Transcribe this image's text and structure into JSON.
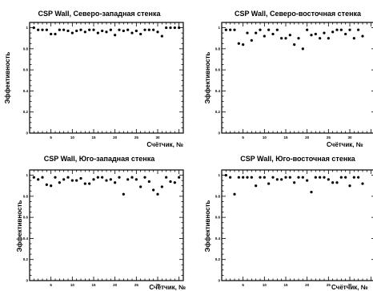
{
  "chart_data": [
    {
      "type": "scatter",
      "title": "CSP Wall, Северо-западная стенка",
      "xlabel": "Счётчик, №",
      "ylabel": "Эффективность",
      "xlim": [
        0,
        36
      ],
      "ylim": [
        0,
        1.05
      ],
      "x_ticks": [
        "5",
        "10",
        "15",
        "20",
        "25",
        "30"
      ],
      "y_ticks": [
        "0",
        "0.2",
        "0.4",
        "0.6",
        "0.8",
        "1"
      ],
      "x": [
        1,
        2,
        3,
        4,
        5,
        6,
        7,
        8,
        9,
        10,
        11,
        12,
        13,
        14,
        15,
        16,
        17,
        18,
        19,
        20,
        21,
        22,
        23,
        24,
        25,
        26,
        27,
        28,
        29,
        30,
        31,
        32,
        33,
        34,
        35
      ],
      "y": [
        1.0,
        0.98,
        0.98,
        0.98,
        0.94,
        0.94,
        0.98,
        0.98,
        0.97,
        0.95,
        0.97,
        0.98,
        0.96,
        0.98,
        0.98,
        0.95,
        0.97,
        0.96,
        0.98,
        0.93,
        0.98,
        0.97,
        0.98,
        0.95,
        0.97,
        0.94,
        0.98,
        0.98,
        0.98,
        0.96,
        0.92,
        1.0,
        1.0,
        1.0,
        1.0
      ]
    },
    {
      "type": "scatter",
      "title": "CSP Wall, Северо-восточная стенка",
      "xlabel": "Счётчик, №",
      "ylabel": "Эффективность",
      "xlim": [
        0,
        36
      ],
      "ylim": [
        0,
        1.05
      ],
      "x_ticks": [
        "5",
        "10",
        "15",
        "20",
        "25",
        "30"
      ],
      "y_ticks": [
        "0",
        "0.2",
        "0.4",
        "0.6",
        "0.8",
        "1"
      ],
      "x": [
        1,
        2,
        3,
        4,
        5,
        6,
        7,
        8,
        9,
        10,
        11,
        12,
        13,
        14,
        15,
        16,
        17,
        18,
        19,
        20,
        21,
        22,
        23,
        24,
        25,
        26,
        27,
        28,
        29,
        30,
        31,
        32,
        33
      ],
      "y": [
        0.98,
        0.98,
        0.98,
        0.85,
        0.84,
        0.95,
        0.88,
        0.95,
        0.98,
        0.92,
        0.98,
        0.94,
        0.98,
        0.9,
        0.9,
        0.93,
        0.84,
        0.9,
        0.8,
        0.98,
        0.93,
        0.94,
        0.9,
        0.95,
        0.9,
        0.96,
        0.98,
        0.98,
        0.94,
        0.98,
        0.9,
        0.98,
        0.92
      ]
    },
    {
      "type": "scatter",
      "title": "CSP Wall, Юго-западная стенка",
      "xlabel": "Счётчик, №",
      "ylabel": "Эффективность",
      "xlim": [
        0,
        36
      ],
      "ylim": [
        0,
        1.05
      ],
      "x_ticks": [
        "5",
        "10",
        "15",
        "20",
        "25",
        "30"
      ],
      "y_ticks": [
        "0",
        "0.2",
        "0.4",
        "0.6",
        "0.8",
        "1"
      ],
      "x": [
        1,
        2,
        3,
        4,
        5,
        6,
        7,
        8,
        9,
        10,
        11,
        12,
        13,
        14,
        15,
        16,
        17,
        18,
        19,
        20,
        21,
        22,
        23,
        24,
        25,
        26,
        27,
        28,
        29,
        30,
        31,
        32,
        33,
        34,
        35
      ],
      "y": [
        0.98,
        0.96,
        0.98,
        0.91,
        0.9,
        0.98,
        0.93,
        0.96,
        0.98,
        0.95,
        0.95,
        0.97,
        0.92,
        0.92,
        0.96,
        0.98,
        0.98,
        0.95,
        0.96,
        0.93,
        0.98,
        0.82,
        0.96,
        0.98,
        0.96,
        0.89,
        0.98,
        0.94,
        0.86,
        0.82,
        0.89,
        0.98,
        0.94,
        0.93,
        0.98
      ]
    },
    {
      "type": "scatter",
      "title": "CSP Wall, Юго-восточная стенка",
      "xlabel": "Счётчик, №",
      "ylabel": "Эффективность",
      "xlim": [
        0,
        36
      ],
      "ylim": [
        0,
        1.05
      ],
      "x_ticks": [
        "5",
        "10",
        "15",
        "20",
        "25",
        "30"
      ],
      "y_ticks": [
        "0",
        "0.2",
        "0.4",
        "0.6",
        "0.8",
        "1"
      ],
      "x": [
        1,
        2,
        3,
        4,
        5,
        6,
        7,
        8,
        9,
        10,
        11,
        12,
        13,
        14,
        15,
        16,
        17,
        18,
        19,
        20,
        21,
        22,
        23,
        24,
        25,
        26,
        27,
        28,
        29,
        30,
        31,
        32,
        33
      ],
      "y": [
        1.0,
        0.98,
        0.82,
        0.98,
        0.98,
        0.98,
        0.98,
        0.9,
        0.98,
        0.98,
        0.92,
        0.98,
        0.96,
        0.96,
        0.98,
        0.98,
        0.93,
        0.98,
        0.98,
        0.95,
        0.84,
        0.98,
        0.98,
        0.98,
        0.96,
        0.93,
        0.93,
        0.98,
        0.98,
        0.9,
        0.98,
        0.98,
        0.92
      ]
    }
  ]
}
